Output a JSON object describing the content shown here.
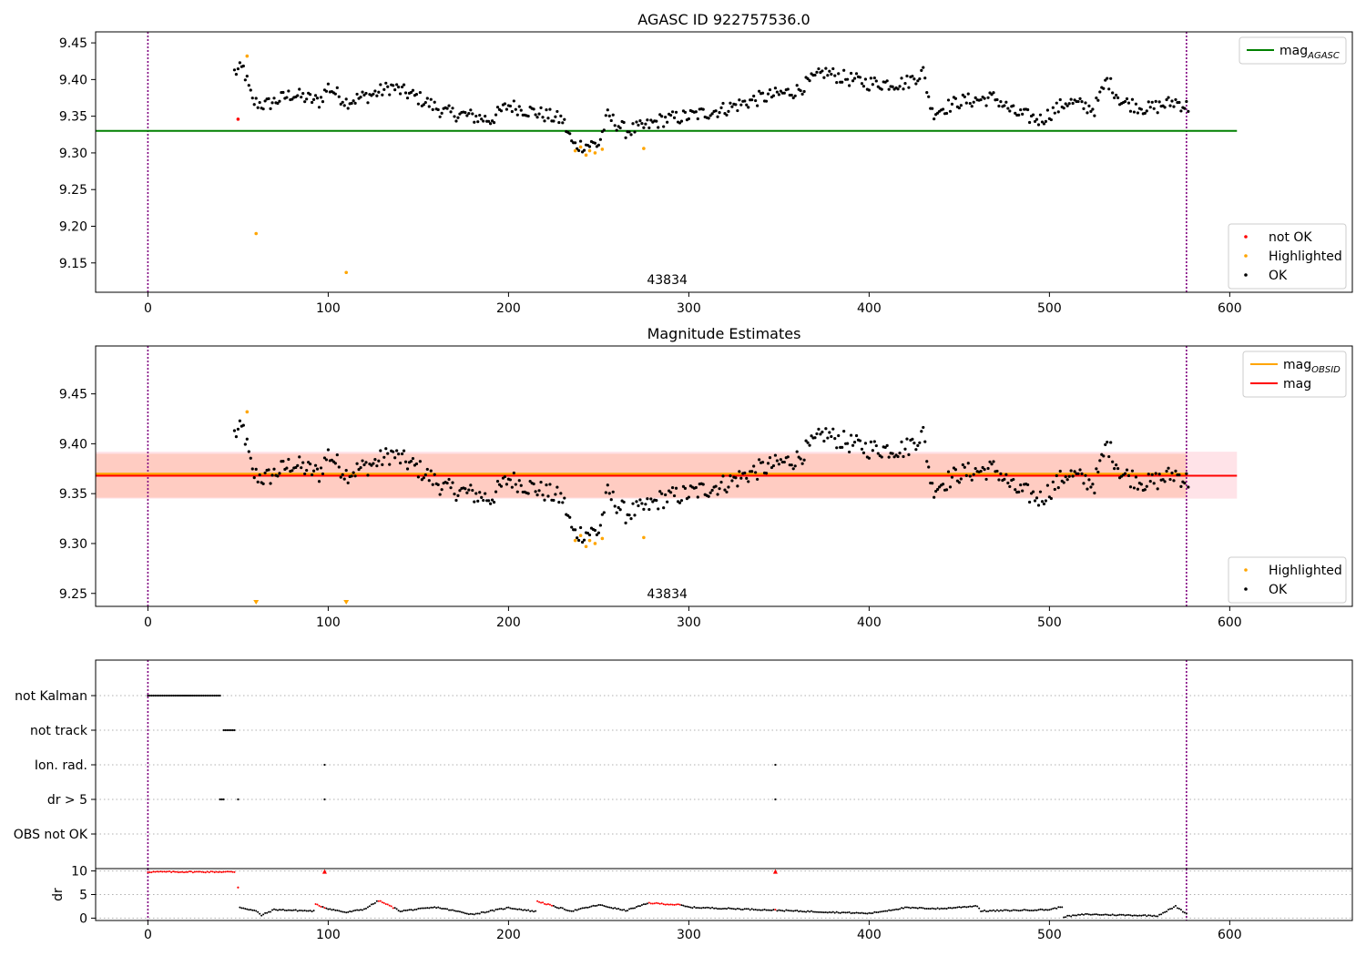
{
  "chart_data": [
    {
      "type": "scatter",
      "title": "AGASC ID 922757536.0",
      "xlim": [
        -29,
        668
      ],
      "ylim": [
        9.11,
        9.465
      ],
      "xticks": [
        0,
        100,
        200,
        300,
        400,
        500,
        600
      ],
      "yticks": [
        9.15,
        9.2,
        9.25,
        9.3,
        9.35,
        9.4,
        9.45
      ],
      "annotation": {
        "text": "43834",
        "x": 288
      },
      "vlines": [
        0,
        576
      ],
      "hline": {
        "y": 9.33,
        "x0": -29,
        "x1": 604,
        "color": "#008000",
        "label": "mag_AGASC"
      },
      "legend_top": [
        {
          "label": "mag",
          "sub": "AGASC",
          "color": "#008000",
          "kind": "line"
        }
      ],
      "legend_bottom": [
        {
          "label": "not OK",
          "color": "#ff0000",
          "kind": "dot"
        },
        {
          "label": "Highlighted",
          "color": "#ffa500",
          "kind": "dot"
        },
        {
          "label": "OK",
          "color": "#000000",
          "kind": "dot"
        }
      ],
      "series": [
        {
          "name": "not OK",
          "color": "#ff0000",
          "points": [
            [
              50,
              9.346
            ]
          ]
        },
        {
          "name": "Highlighted",
          "color": "#ffa500",
          "points": [
            [
              55,
              9.432
            ],
            [
              60,
              9.19
            ],
            [
              110,
              9.137
            ],
            [
              237,
              9.303
            ],
            [
              240,
              9.308
            ],
            [
              243,
              9.297
            ],
            [
              245,
              9.303
            ],
            [
              248,
              9.3
            ],
            [
              252,
              9.305
            ],
            [
              275,
              9.306
            ]
          ]
        },
        {
          "name": "OK",
          "color": "#000000",
          "keyframes": [
            [
              48,
              9.41
            ],
            [
              53,
              9.415
            ],
            [
              58,
              9.37
            ],
            [
              65,
              9.365
            ],
            [
              80,
              9.38
            ],
            [
              95,
              9.37
            ],
            [
              100,
              9.39
            ],
            [
              110,
              9.37
            ],
            [
              125,
              9.38
            ],
            [
              135,
              9.39
            ],
            [
              150,
              9.375
            ],
            [
              165,
              9.355
            ],
            [
              175,
              9.352
            ],
            [
              190,
              9.345
            ],
            [
              200,
              9.365
            ],
            [
              215,
              9.355
            ],
            [
              230,
              9.345
            ],
            [
              236,
              9.31
            ],
            [
              250,
              9.312
            ],
            [
              255,
              9.35
            ],
            [
              265,
              9.33
            ],
            [
              275,
              9.335
            ],
            [
              285,
              9.345
            ],
            [
              300,
              9.35
            ],
            [
              320,
              9.36
            ],
            [
              340,
              9.375
            ],
            [
              360,
              9.385
            ],
            [
              375,
              9.41
            ],
            [
              390,
              9.4
            ],
            [
              400,
              9.395
            ],
            [
              420,
              9.395
            ],
            [
              430,
              9.41
            ],
            [
              435,
              9.355
            ],
            [
              450,
              9.37
            ],
            [
              470,
              9.375
            ],
            [
              480,
              9.355
            ],
            [
              495,
              9.345
            ],
            [
              510,
              9.37
            ],
            [
              525,
              9.36
            ],
            [
              532,
              9.4
            ],
            [
              540,
              9.37
            ],
            [
              555,
              9.36
            ],
            [
              570,
              9.37
            ],
            [
              577,
              9.362
            ]
          ]
        }
      ]
    },
    {
      "type": "scatter",
      "title": "Magnitude Estimates",
      "xlim": [
        -29,
        668
      ],
      "ylim": [
        9.237,
        9.498
      ],
      "xticks": [
        0,
        100,
        200,
        300,
        400,
        500,
        600
      ],
      "yticks": [
        9.25,
        9.3,
        9.35,
        9.4,
        9.45
      ],
      "annotation": {
        "text": "43834",
        "x": 288
      },
      "vlines": [
        0,
        576
      ],
      "bands": [
        {
          "y0": 9.345,
          "y1": 9.392,
          "color": "#ffc0cb",
          "opacity": 0.45
        },
        {
          "y0": 9.346,
          "y1": 9.39,
          "color": "#ffa07a",
          "opacity": 0.35,
          "x1": 576
        }
      ],
      "hlines": [
        {
          "y": 9.3695,
          "color": "#ffa500",
          "width": 3,
          "x1": 576,
          "label": "mag_OBSID"
        },
        {
          "y": 9.368,
          "color": "#ff0000",
          "width": 2,
          "x1": 604,
          "label": "mag"
        }
      ],
      "legend_top": [
        {
          "label": "mag",
          "sub": "OBSID",
          "color": "#ffa500",
          "kind": "line"
        },
        {
          "label": "mag",
          "sub": "",
          "color": "#ff0000",
          "kind": "line"
        }
      ],
      "legend_bottom": [
        {
          "label": "Highlighted",
          "color": "#ffa500",
          "kind": "dot"
        },
        {
          "label": "OK",
          "color": "#000000",
          "kind": "dot"
        }
      ],
      "series": [
        {
          "name": "Highlighted",
          "color": "#ffa500",
          "points": [
            [
              55,
              9.432
            ],
            [
              237,
              9.303
            ],
            [
              240,
              9.308
            ],
            [
              243,
              9.297
            ],
            [
              245,
              9.303
            ],
            [
              248,
              9.3
            ],
            [
              252,
              9.305
            ],
            [
              275,
              9.306
            ]
          ],
          "markers_below": [
            60,
            110
          ]
        },
        {
          "name": "OK",
          "color": "#000000",
          "same_as_panel": 0
        }
      ]
    },
    {
      "type": "scatter",
      "xlim": [
        -29,
        668
      ],
      "categories": [
        "not Kalman",
        "not track",
        "Ion. rad.",
        "dr > 5",
        "OBS not OK"
      ],
      "vlines": [
        0,
        576
      ],
      "flag_series": {
        "not Kalman": {
          "ranges": [
            [
              0,
              40
            ]
          ],
          "points": []
        },
        "not track": {
          "ranges": [
            [
              42,
              48
            ]
          ],
          "points": []
        },
        "Ion. rad.": {
          "ranges": [],
          "points": [
            98,
            348
          ]
        },
        "dr > 5": {
          "ranges": [
            [
              40,
              42
            ]
          ],
          "points": [
            50,
            98,
            348
          ]
        },
        "OBS not OK": {
          "ranges": [],
          "points": []
        }
      },
      "dr": {
        "ylabel": "dr",
        "yticks": [
          0,
          5,
          10
        ],
        "ylim": [
          -0.5,
          10.5
        ],
        "keyframes": [
          [
            0,
            9.8
          ],
          [
            48,
            9.8
          ],
          [
            50,
            6.5
          ],
          [
            51,
            2.3
          ],
          [
            60,
            1.5
          ],
          [
            63,
            0.6
          ],
          [
            70,
            1.8
          ],
          [
            92,
            1.5
          ],
          [
            93,
            2.9
          ],
          [
            100,
            2.0
          ],
          [
            110,
            1.2
          ],
          [
            120,
            1.9
          ],
          [
            128,
            3.7
          ],
          [
            132,
            3.0
          ],
          [
            140,
            1.5
          ],
          [
            160,
            2.3
          ],
          [
            180,
            0.8
          ],
          [
            200,
            2.2
          ],
          [
            215,
            1.4
          ],
          [
            216,
            3.6
          ],
          [
            225,
            2.5
          ],
          [
            235,
            1.5
          ],
          [
            250,
            2.8
          ],
          [
            265,
            1.6
          ],
          [
            278,
            3.2
          ],
          [
            295,
            2.8
          ],
          [
            300,
            2.3
          ],
          [
            340,
            1.8
          ],
          [
            360,
            1.5
          ],
          [
            400,
            1.0
          ],
          [
            420,
            2.2
          ],
          [
            440,
            2.0
          ],
          [
            460,
            2.6
          ],
          [
            462,
            1.5
          ],
          [
            500,
            1.8
          ],
          [
            507,
            2.4
          ],
          [
            508,
            0.3
          ],
          [
            520,
            0.8
          ],
          [
            560,
            0.5
          ],
          [
            570,
            2.5
          ],
          [
            576,
            0.9
          ]
        ],
        "red_segments": [
          [
            0,
            48
          ],
          [
            50,
            50
          ],
          [
            93,
            96
          ],
          [
            98,
            98
          ],
          [
            128,
            136
          ],
          [
            216,
            224
          ],
          [
            278,
            295
          ],
          [
            348,
            348
          ]
        ],
        "red_points": [
          [
            98,
            9.8
          ],
          [
            348,
            9.8
          ]
        ]
      },
      "xticks": [
        0,
        100,
        200,
        300,
        400,
        500,
        600
      ]
    }
  ]
}
